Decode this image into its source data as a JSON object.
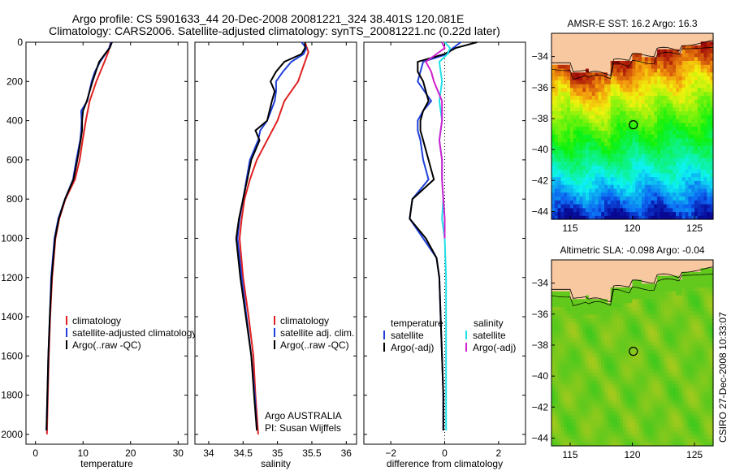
{
  "header": {
    "line1": "Argo profile: CS 5901633_44 20-Dec-2008 20081221_324 38.401S 120.081E",
    "line2": "Climatology: CARS2006. Satellite-adjusted climatology: synTS_20081221.nc (0.22d later)"
  },
  "side_text": "CSIRO 27-Dec-2008 10:33:07",
  "colors": {
    "clim": "#e02020",
    "sat": "#1f3fd8",
    "argo": "#000000",
    "sat_sal": "#20e0e8",
    "argo_sal": "#d020d0",
    "land": "#f8c8a0"
  },
  "chart_data": [
    {
      "type": "line",
      "xlabel": "temperature",
      "ylim": [
        2050,
        0
      ],
      "xlim": [
        -2,
        32
      ],
      "xticks": [
        0,
        10,
        20,
        30
      ],
      "yticks": [
        0,
        200,
        400,
        600,
        800,
        1000,
        1200,
        1400,
        1600,
        1800,
        2000
      ],
      "legend": [
        "climatology",
        "satellite-adjusted climatology",
        "Argo(..raw -QC)"
      ],
      "series": [
        {
          "key": "clim",
          "color": "#e02020",
          "depth": [
            0,
            50,
            100,
            200,
            300,
            400,
            500,
            600,
            700,
            800,
            900,
            1000,
            1200,
            1400,
            1600,
            1800,
            2000
          ],
          "values": [
            15.8,
            15.3,
            14.5,
            12.8,
            11.4,
            10.6,
            9.9,
            9.3,
            8.3,
            6.3,
            5.0,
            4.2,
            3.5,
            3.1,
            2.8,
            2.6,
            2.4
          ]
        },
        {
          "key": "sat",
          "color": "#1f3fd8",
          "depth": [
            0,
            30,
            60,
            100,
            150,
            200,
            300,
            350,
            400,
            450,
            500,
            600,
            700,
            800,
            900,
            1000,
            1200,
            1400,
            1600,
            1800,
            1980
          ],
          "values": [
            15.9,
            15.5,
            14.7,
            13.6,
            12.5,
            11.8,
            10.9,
            9.6,
            9.7,
            9.6,
            9.4,
            8.6,
            7.9,
            6.2,
            4.8,
            4.0,
            3.3,
            3.0,
            2.7,
            2.5,
            2.3
          ]
        },
        {
          "key": "argo",
          "color": "#000000",
          "depth": [
            0,
            30,
            60,
            100,
            150,
            200,
            300,
            350,
            400,
            450,
            500,
            600,
            700,
            800,
            900,
            1000,
            1200,
            1400,
            1600,
            1800,
            1980
          ],
          "values": [
            16.1,
            15.6,
            14.6,
            13.4,
            12.7,
            12.0,
            10.8,
            10.0,
            9.8,
            9.8,
            9.5,
            8.8,
            8.0,
            6.2,
            4.9,
            4.1,
            3.4,
            3.0,
            2.7,
            2.5,
            2.3
          ]
        }
      ]
    },
    {
      "type": "line",
      "xlabel": "salinity",
      "ylim": [
        2050,
        0
      ],
      "xlim": [
        33.8,
        36.15
      ],
      "xticks": [
        34,
        34.5,
        35,
        35.5,
        36
      ],
      "legend": [
        "climatology",
        "satellite adj. clim.",
        "Argo(..raw -QC)"
      ],
      "annotation": [
        "Argo AUSTRALIA",
        "PI: Susan Wijffels"
      ],
      "series": [
        {
          "key": "clim",
          "color": "#e02020",
          "depth": [
            0,
            50,
            100,
            200,
            300,
            400,
            500,
            600,
            700,
            800,
            900,
            1000,
            1200,
            1400,
            1600,
            1800,
            2000
          ],
          "values": [
            35.4,
            35.45,
            35.4,
            35.3,
            35.1,
            35.0,
            34.85,
            34.7,
            34.6,
            34.52,
            34.48,
            34.45,
            34.5,
            34.58,
            34.65,
            34.68,
            34.72
          ]
        },
        {
          "key": "sat",
          "color": "#1f3fd8",
          "depth": [
            0,
            30,
            60,
            100,
            150,
            200,
            250,
            300,
            400,
            450,
            500,
            600,
            700,
            800,
            900,
            1000,
            1200,
            1400,
            1600,
            1800,
            1980
          ],
          "values": [
            35.35,
            35.42,
            35.38,
            35.2,
            35.08,
            34.98,
            34.98,
            34.96,
            34.85,
            34.75,
            34.72,
            34.6,
            34.55,
            34.5,
            34.45,
            34.42,
            34.48,
            34.55,
            34.62,
            34.67,
            34.7
          ]
        },
        {
          "key": "argo",
          "color": "#000000",
          "depth": [
            0,
            30,
            60,
            100,
            150,
            200,
            250,
            300,
            400,
            450,
            500,
            600,
            700,
            800,
            900,
            1000,
            1200,
            1400,
            1600,
            1800,
            1980
          ],
          "values": [
            35.4,
            35.4,
            35.35,
            35.1,
            34.98,
            34.9,
            34.96,
            34.92,
            34.85,
            34.68,
            34.74,
            34.62,
            34.56,
            34.5,
            34.44,
            34.4,
            34.46,
            34.54,
            34.62,
            34.66,
            34.7
          ]
        }
      ]
    },
    {
      "type": "line",
      "xlabel": "difference from climatology",
      "ylim": [
        2050,
        0
      ],
      "xlim": [
        -3,
        3
      ],
      "xticks": [
        -2,
        0,
        2
      ],
      "legend_left_title": "temperature",
      "legend_left": [
        "satellite",
        "Argo(-adj)"
      ],
      "legend_right_title": "salinity",
      "legend_right": [
        "satellite",
        "Argo(-adj)"
      ],
      "series": [
        {
          "key": "sat_temp",
          "color": "#1f3fd8",
          "depth": [
            0,
            30,
            60,
            100,
            150,
            200,
            300,
            350,
            400,
            450,
            500,
            600,
            700,
            800,
            900,
            1000,
            1100,
            1200,
            1400,
            1600,
            1800,
            1980
          ],
          "values": [
            0.6,
            0.3,
            0.1,
            -0.8,
            -0.9,
            -1.0,
            -0.5,
            -0.8,
            -1.0,
            -1.0,
            -0.9,
            -0.8,
            -0.6,
            -1.2,
            -1.3,
            -0.8,
            -0.3,
            -0.2,
            -0.15,
            -0.1,
            -0.05,
            -0.05
          ]
        },
        {
          "key": "argo_temp",
          "color": "#000000",
          "depth": [
            0,
            30,
            60,
            100,
            150,
            200,
            300,
            350,
            400,
            450,
            500,
            600,
            700,
            800,
            900,
            1000,
            1100,
            1200,
            1400,
            1600,
            1800,
            1980
          ],
          "values": [
            1.2,
            0.4,
            0.0,
            -1.0,
            -1.0,
            -0.8,
            -0.6,
            -0.8,
            -0.9,
            -0.9,
            -0.8,
            -0.6,
            -0.4,
            -1.2,
            -1.3,
            -0.7,
            -0.3,
            -0.2,
            -0.15,
            -0.1,
            -0.05,
            -0.05
          ]
        },
        {
          "key": "sat_sal",
          "color": "#20e0e8",
          "depth": [
            0,
            30,
            60,
            100,
            200,
            300,
            400,
            500,
            600,
            700,
            800,
            900,
            1000,
            1200,
            1400,
            1600,
            1800,
            1980
          ],
          "values": [
            0.0,
            0.2,
            0.1,
            -0.2,
            -0.1,
            -0.2,
            -0.1,
            -0.2,
            -0.1,
            -0.1,
            -0.05,
            -0.1,
            0.0,
            0.05,
            0.05,
            0.05,
            0.05,
            0.05
          ]
        },
        {
          "key": "argo_sal",
          "color": "#d020d0",
          "depth": [
            0,
            30,
            60,
            100,
            150,
            200,
            300,
            400,
            500,
            600,
            700,
            800,
            900,
            1000
          ],
          "values": [
            -0.1,
            0.0,
            -0.3,
            -0.7,
            -0.5,
            -0.4,
            -0.1,
            -0.1,
            -0.2,
            -0.1,
            -0.1,
            -0.05,
            0.0,
            0.0
          ]
        }
      ]
    },
    {
      "type": "heatmap",
      "title": "AMSR-E SST: 16.2 Argo: 16.3",
      "xlim": [
        113.5,
        126.5
      ],
      "ylim": [
        -44.5,
        -32.5
      ],
      "xticks": [
        115,
        120,
        125
      ],
      "yticks": [
        -34,
        -36,
        -38,
        -40,
        -42,
        -44
      ],
      "argo_position": {
        "lon": 120.081,
        "lat": -38.401
      }
    },
    {
      "type": "heatmap",
      "title": "Altimetric SLA: -0.098 Argo: -0.04",
      "xlim": [
        113.5,
        126.5
      ],
      "ylim": [
        -44.5,
        -32.5
      ],
      "xticks": [
        115,
        120,
        125
      ],
      "yticks": [
        -34,
        -36,
        -38,
        -40,
        -42,
        -44
      ],
      "argo_position": {
        "lon": 120.081,
        "lat": -38.401
      }
    }
  ]
}
